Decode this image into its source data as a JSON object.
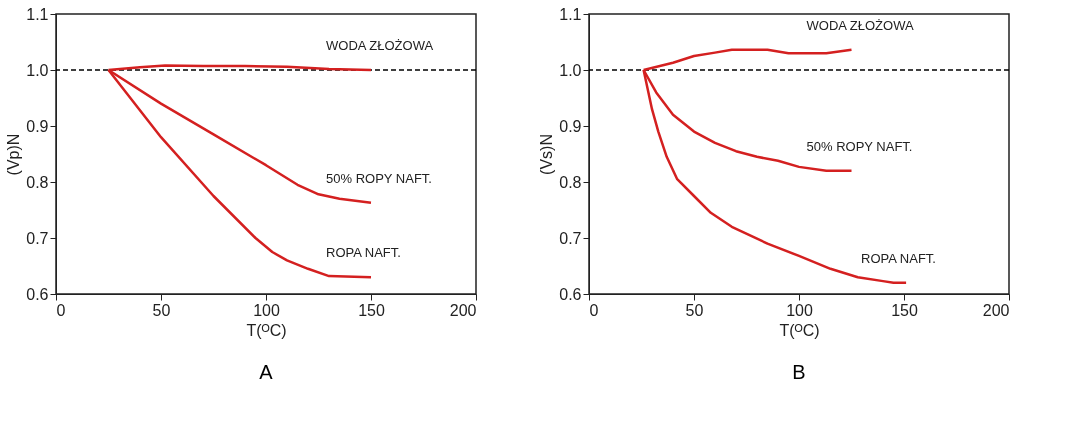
{
  "chart_data": [
    {
      "type": "line",
      "title": "A",
      "xlabel": "T(ᴼC)",
      "ylabel": "(Vp)N",
      "xlim": [
        0,
        200
      ],
      "xticks": [
        0,
        50,
        100,
        150,
        200
      ],
      "ylim": [
        0.6,
        1.1
      ],
      "yticks": [
        {
          "value": 0.6,
          "label": "0.6"
        },
        {
          "value": 0.7,
          "label": "0.7"
        },
        {
          "value": 0.8,
          "label": "0.8"
        },
        {
          "value": 0.9,
          "label": "0.9"
        },
        {
          "value": 1.0,
          "label": "1.0"
        },
        {
          "value": 1.1,
          "label": "1.1"
        }
      ],
      "grid": false,
      "legend": false,
      "ref_lines": [
        {
          "axis": "y",
          "value": 1.0,
          "color": "#000000",
          "line_style": "dashed"
        }
      ],
      "series": [
        {
          "name": "WODA ZŁOŻOWA",
          "color": "#d42020",
          "x": [
            25,
            40,
            52,
            70,
            90,
            110,
            130,
            150
          ],
          "values": [
            1.0,
            1.005,
            1.008,
            1.007,
            1.007,
            1.006,
            1.002,
            1.0
          ]
        },
        {
          "name": "50% ROPY NAFT.",
          "color": "#d42020",
          "x": [
            25,
            50,
            75,
            100,
            115,
            125,
            135,
            150
          ],
          "values": [
            1.0,
            0.94,
            0.885,
            0.83,
            0.795,
            0.778,
            0.77,
            0.763
          ]
        },
        {
          "name": "ROPA NAFT.",
          "color": "#d42020",
          "x": [
            25,
            50,
            75,
            95,
            103,
            110,
            120,
            130,
            150
          ],
          "values": [
            1.0,
            0.88,
            0.775,
            0.7,
            0.675,
            0.66,
            0.645,
            0.632,
            0.63
          ]
        }
      ]
    },
    {
      "type": "line",
      "title": "B",
      "xlabel": "T(ᴼC)",
      "ylabel": "(Vs)N",
      "xlim": [
        0,
        200
      ],
      "xticks": [
        0,
        50,
        100,
        150,
        200
      ],
      "ylim": [
        0.6,
        1.1
      ],
      "yticks": [
        {
          "value": 0.6,
          "label": "0.6"
        },
        {
          "value": 0.7,
          "label": "0.7"
        },
        {
          "value": 0.8,
          "label": "0.8"
        },
        {
          "value": 0.9,
          "label": "0.9"
        },
        {
          "value": 1.0,
          "label": "1.0"
        },
        {
          "value": 1.1,
          "label": "1.1"
        }
      ],
      "grid": false,
      "legend": false,
      "ref_lines": [
        {
          "axis": "y",
          "value": 1.0,
          "color": "#000000",
          "line_style": "dashed"
        }
      ],
      "series": [
        {
          "name": "WODA ZŁOŻOWA",
          "color": "#d42020",
          "x": [
            26,
            40,
            50,
            60,
            68,
            80,
            85,
            95,
            113,
            125
          ],
          "values": [
            1.0,
            1.013,
            1.025,
            1.031,
            1.036,
            1.036,
            1.036,
            1.03,
            1.03,
            1.036
          ]
        },
        {
          "name": "50% ROPY NAFT.",
          "color": "#d42020",
          "x": [
            26,
            32,
            40,
            50,
            60,
            70,
            80,
            90,
            100,
            113,
            125
          ],
          "values": [
            1.0,
            0.96,
            0.92,
            0.89,
            0.87,
            0.855,
            0.845,
            0.838,
            0.827,
            0.82,
            0.82
          ]
        },
        {
          "name": "ROPA NAFT.",
          "color": "#d42020",
          "x": [
            26,
            30,
            33,
            37,
            42,
            50,
            58,
            68,
            85,
            100,
            115,
            128,
            140,
            145,
            151
          ],
          "values": [
            1.0,
            0.93,
            0.89,
            0.845,
            0.805,
            0.775,
            0.745,
            0.72,
            0.69,
            0.668,
            0.645,
            0.63,
            0.623,
            0.62,
            0.62
          ]
        }
      ]
    }
  ]
}
